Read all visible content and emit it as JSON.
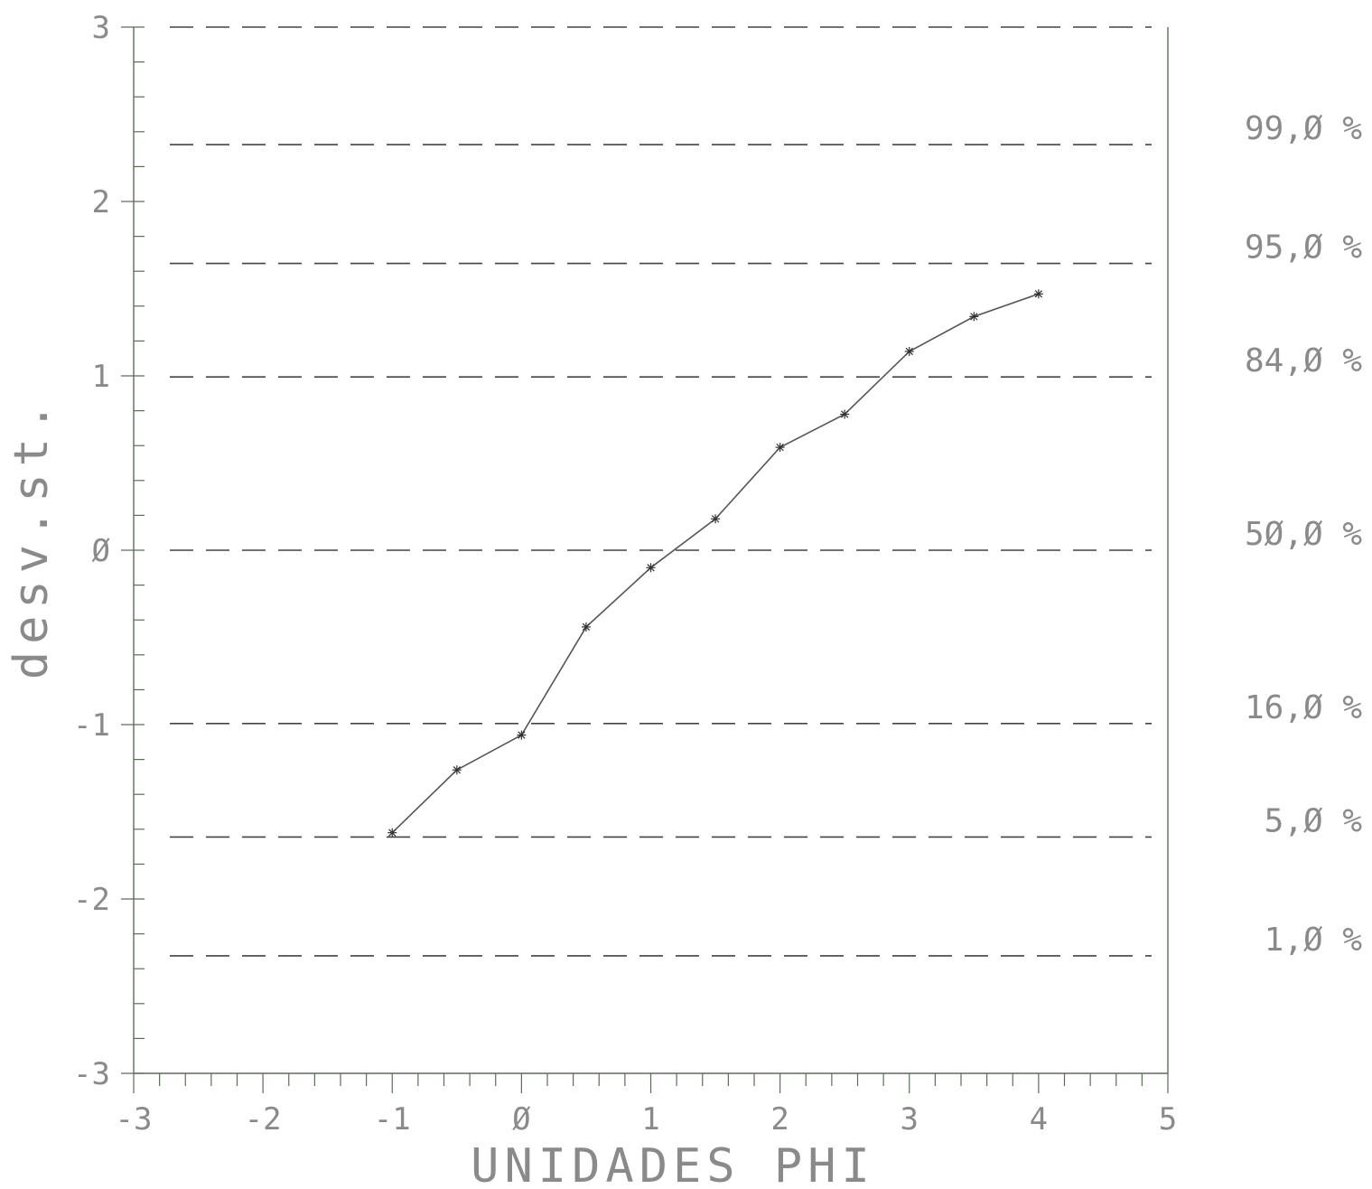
{
  "chart_data": {
    "type": "line",
    "title": "",
    "xlabel": "UNIDADES PHI",
    "ylabel": "desv.st.",
    "xlim": [
      -3,
      5
    ],
    "ylim": [
      -3,
      3
    ],
    "x_ticks": [
      "-3",
      "-2",
      "-1",
      "Ø",
      "1",
      "2",
      "3",
      "4",
      "5"
    ],
    "y_ticks": [
      "-3",
      "-2",
      "-1",
      "Ø",
      "1",
      "2",
      "3"
    ],
    "series": [
      {
        "x": [
          -1,
          -0.5,
          0,
          0.5,
          1,
          1.5,
          2,
          2.5,
          3,
          3.5,
          4
        ],
        "y": [
          -1.62,
          -1.26,
          -1.06,
          -0.44,
          -0.1,
          0.18,
          0.59,
          0.78,
          1.14,
          1.34,
          1.47
        ],
        "marker": "asterisk"
      }
    ],
    "reference_lines": [
      {
        "y": 2.326,
        "label": "99,Ø %"
      },
      {
        "y": 1.645,
        "label": "95,Ø %"
      },
      {
        "y": 0.994,
        "label": "84,Ø %"
      },
      {
        "y": 0,
        "label": "5Ø,Ø %"
      },
      {
        "y": -0.994,
        "label": "16,Ø %"
      },
      {
        "y": -1.645,
        "label": "5,Ø %"
      },
      {
        "y": -2.326,
        "label": "1,Ø %"
      }
    ],
    "top_reference_line": {
      "y": 3
    },
    "grid": false,
    "colors": {
      "line": "#555555",
      "dash": "#444444",
      "axis": "#5a6e5a",
      "text": "#8a8a8a"
    }
  }
}
